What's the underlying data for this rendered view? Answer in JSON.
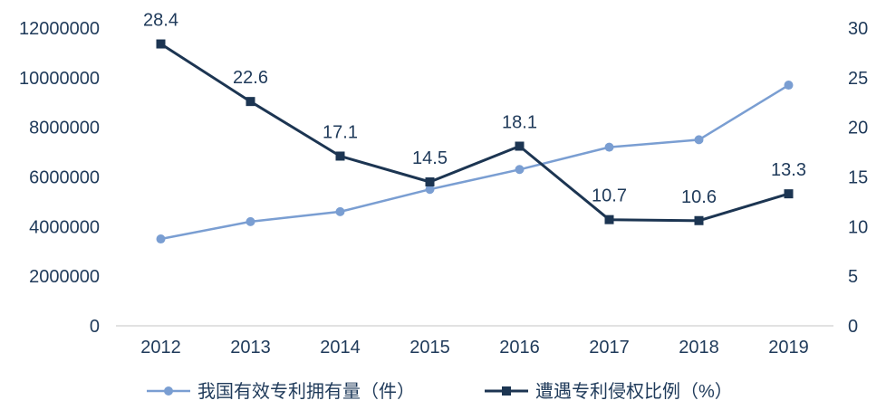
{
  "chart_data": {
    "type": "line",
    "x": [
      "2012",
      "2013",
      "2014",
      "2015",
      "2016",
      "2017",
      "2018",
      "2019"
    ],
    "y_left": {
      "ticks": [
        "0",
        "2000000",
        "4000000",
        "6000000",
        "8000000",
        "10000000",
        "12000000"
      ],
      "lim": [
        0,
        12000000
      ]
    },
    "y_right": {
      "ticks": [
        "0",
        "5",
        "10",
        "15",
        "20",
        "25",
        "30"
      ],
      "lim": [
        0,
        30
      ]
    },
    "series": [
      {
        "name": "我国有效专利拥有量（件）",
        "axis": "left",
        "marker": "circle",
        "color": "#7a9ed2",
        "values": [
          3500000,
          4200000,
          4600000,
          5500000,
          6300000,
          7200000,
          7500000,
          9700000
        ]
      },
      {
        "name": "遭遇专利侵权比例（%）",
        "axis": "right",
        "marker": "square",
        "color": "#1c3552",
        "values": [
          28.4,
          22.6,
          17.1,
          14.5,
          18.1,
          10.7,
          10.6,
          13.3
        ],
        "data_labels": [
          "28.4",
          "22.6",
          "17.1",
          "14.5",
          "18.1",
          "10.7",
          "10.6",
          "13.3"
        ]
      }
    ],
    "grid": false,
    "legend_position": "bottom"
  },
  "colors": {
    "axis_line": "#d9d9d9",
    "text": "#1f3a5a"
  }
}
